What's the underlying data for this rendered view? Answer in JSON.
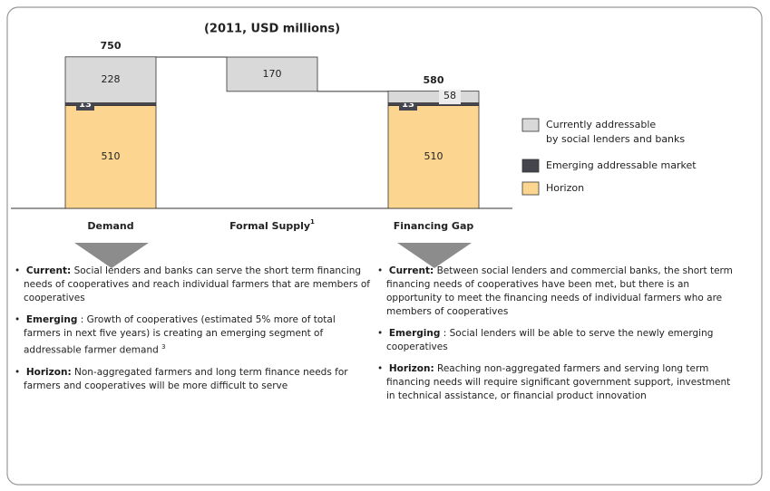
{
  "chart_data": {
    "type": "waterfall",
    "title": "(2011, USD millions)",
    "categories": [
      "Demand",
      "Formal Supply",
      "Financing Gap"
    ],
    "category_footnotes": [
      null,
      "1",
      null
    ],
    "totals": [
      750,
      null,
      580
    ],
    "series": [
      {
        "name": "Currently addressable by social lenders and banks",
        "color": "#d9d9d9",
        "values": [
          228,
          170,
          58
        ]
      },
      {
        "name": "Emerging addressable market",
        "color": "#45454d",
        "values": [
          13,
          null,
          13
        ]
      },
      {
        "name": "Horizon",
        "color": "#fcd591",
        "values": [
          510,
          null,
          510
        ]
      }
    ]
  },
  "notes": [
    {
      "items": [
        {
          "label": "Current:",
          "text": "Social lenders and banks can serve the short term financing needs of cooperatives and reach individual farmers that are members of cooperatives"
        },
        {
          "label": "Emerging",
          "text": ": Growth of cooperatives (estimated 5% more of total farmers in next five years) is creating an emerging segment of addressable farmer demand",
          "footnote": "3"
        },
        {
          "label": "Horizon:",
          "text": "Non-aggregated farmers and long term finance needs for farmers and cooperatives will be more difficult to serve"
        }
      ]
    },
    {
      "items": [
        {
          "label": "Current:",
          "text": "Between social lenders and commercial banks, the short term financing needs of cooperatives have been met, but there is an opportunity to meet the financing needs of individual farmers who are members of cooperatives"
        },
        {
          "label": "Emerging",
          "text": ": Social lenders will be able to serve the newly emerging cooperatives"
        },
        {
          "label": "Horizon:",
          "text": "Reaching non-aggregated farmers and serving long term financing needs will require significant government support, investment in technical assistance, or financial product innovation"
        }
      ]
    }
  ]
}
